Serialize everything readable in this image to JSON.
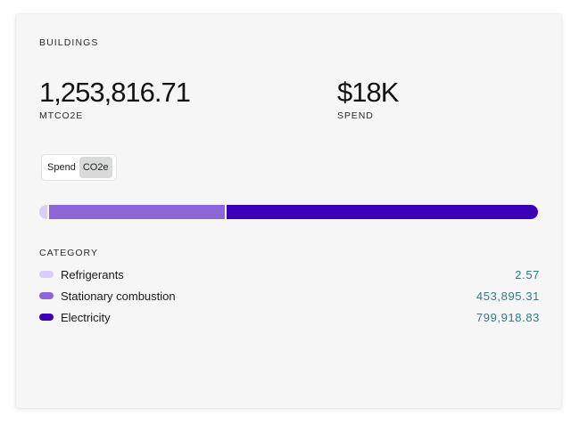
{
  "card": {
    "title": "BUILDINGS",
    "metrics": [
      {
        "value": "1,253,816.71",
        "label": "MTCO2E"
      },
      {
        "value": "$18K",
        "label": "SPEND"
      }
    ],
    "toggle": {
      "options": [
        "Spend",
        "CO2e"
      ],
      "selected": "CO2e"
    },
    "category_title": "CATEGORY",
    "categories": [
      {
        "label": "Refrigerants",
        "value": "2.57",
        "amount": 2.57,
        "color": "#dccdf6"
      },
      {
        "label": "Stationary combustion",
        "value": "453,895.31",
        "amount": 453895.31,
        "color": "#8e65d9"
      },
      {
        "label": "Electricity",
        "value": "799,918.83",
        "amount": 799918.83,
        "color": "#3a00b8"
      }
    ]
  }
}
